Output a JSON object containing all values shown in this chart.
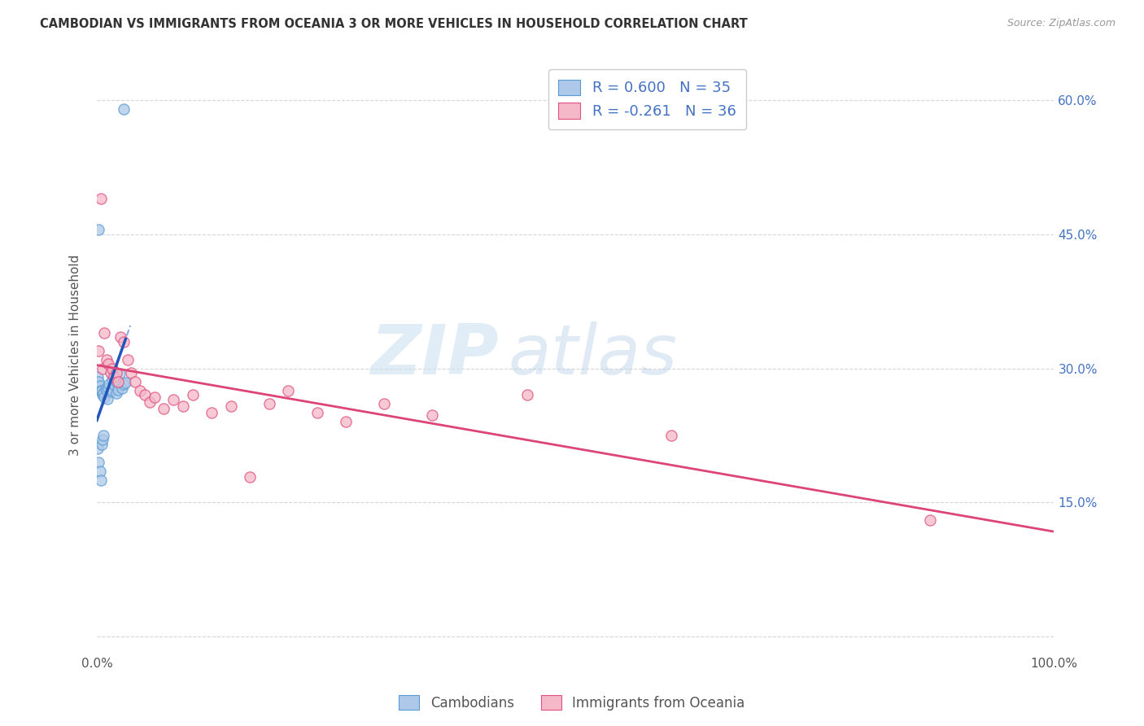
{
  "title": "CAMBODIAN VS IMMIGRANTS FROM OCEANIA 3 OR MORE VEHICLES IN HOUSEHOLD CORRELATION CHART",
  "source": "Source: ZipAtlas.com",
  "ylabel": "3 or more Vehicles in Household",
  "xlim": [
    0,
    1.0
  ],
  "ylim": [
    -0.02,
    0.65
  ],
  "ytick_pos": [
    0.0,
    0.15,
    0.3,
    0.45,
    0.6
  ],
  "yticklabels_right": [
    "",
    "15.0%",
    "30.0%",
    "45.0%",
    "60.0%"
  ],
  "cambodian_color": "#adc8e8",
  "cambodian_edge_color": "#5b9bd5",
  "oceania_color": "#f4b8c8",
  "oceania_edge_color": "#e05080",
  "trend_blue": "#2255bb",
  "trend_pink": "#dd4477",
  "R_cambodian": 0.6,
  "N_cambodian": 35,
  "R_oceania": -0.261,
  "N_oceania": 36,
  "legend_label_cambodian": "Cambodians",
  "legend_label_oceania": "Immigrants from Oceania",
  "watermark_zip": "ZIP",
  "watermark_atlas": "atlas",
  "marker_size": 90,
  "grid_color": "#cccccc",
  "bg_color": "#ffffff",
  "cambodian_x": [
    0.001,
    0.002,
    0.003,
    0.004,
    0.005,
    0.006,
    0.007,
    0.008,
    0.009,
    0.01,
    0.011,
    0.012,
    0.013,
    0.014,
    0.015,
    0.016,
    0.017,
    0.018,
    0.019,
    0.02,
    0.021,
    0.022,
    0.024,
    0.026,
    0.028,
    0.03,
    0.001,
    0.002,
    0.003,
    0.004,
    0.005,
    0.006,
    0.007,
    0.002,
    0.028
  ],
  "cambodian_y": [
    0.29,
    0.285,
    0.28,
    0.275,
    0.275,
    0.27,
    0.272,
    0.268,
    0.278,
    0.276,
    0.266,
    0.278,
    0.282,
    0.274,
    0.276,
    0.288,
    0.292,
    0.282,
    0.288,
    0.272,
    0.284,
    0.276,
    0.294,
    0.278,
    0.282,
    0.284,
    0.21,
    0.195,
    0.185,
    0.175,
    0.215,
    0.22,
    0.225,
    0.455,
    0.59
  ],
  "oceania_x": [
    0.002,
    0.004,
    0.006,
    0.008,
    0.01,
    0.012,
    0.014,
    0.016,
    0.018,
    0.02,
    0.022,
    0.025,
    0.028,
    0.032,
    0.036,
    0.04,
    0.045,
    0.05,
    0.055,
    0.06,
    0.07,
    0.08,
    0.09,
    0.1,
    0.12,
    0.14,
    0.16,
    0.18,
    0.2,
    0.23,
    0.26,
    0.3,
    0.35,
    0.45,
    0.6,
    0.87
  ],
  "oceania_y": [
    0.32,
    0.49,
    0.3,
    0.34,
    0.31,
    0.305,
    0.295,
    0.3,
    0.29,
    0.295,
    0.285,
    0.335,
    0.33,
    0.31,
    0.295,
    0.285,
    0.275,
    0.27,
    0.262,
    0.268,
    0.255,
    0.265,
    0.258,
    0.27,
    0.25,
    0.258,
    0.178,
    0.26,
    0.275,
    0.25,
    0.24,
    0.26,
    0.248,
    0.27,
    0.225,
    0.13
  ]
}
